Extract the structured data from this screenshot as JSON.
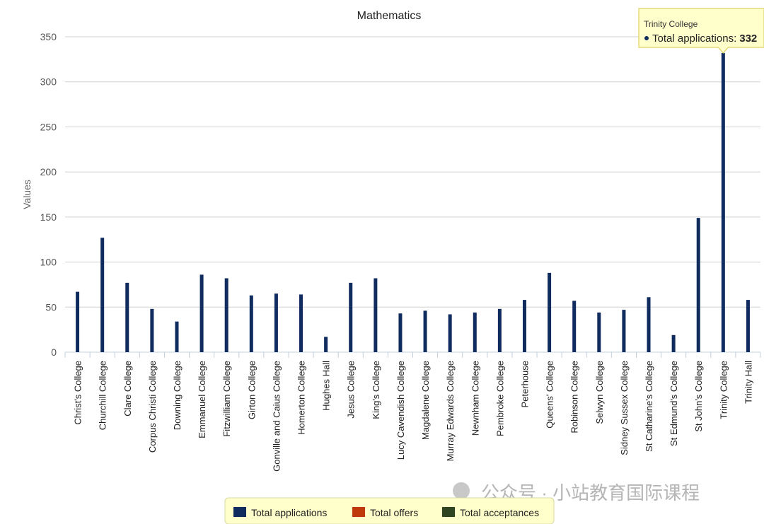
{
  "chart_data": {
    "type": "bar",
    "title": "Mathematics",
    "y_label": "Values",
    "categories": [
      "Christ's College",
      "Churchill College",
      "Clare College",
      "Corpus Christi College",
      "Downing College",
      "Emmanuel College",
      "Fitzwilliam College",
      "Girton College",
      "Gonville and Caius College",
      "Homerton College",
      "Hughes Hall",
      "Jesus College",
      "King's College",
      "Lucy Cavendish College",
      "Magdalene College",
      "Murray Edwards College",
      "Newnham College",
      "Pembroke College",
      "Peterhouse",
      "Queens' College",
      "Robinson College",
      "Selwyn College",
      "Sidney Sussex College",
      "St Catharine's College",
      "St Edmund's College",
      "St John's College",
      "Trinity College",
      "Trinity Hall"
    ],
    "series": [
      {
        "name": "Total applications",
        "color": "#102b5e",
        "values": [
          67,
          127,
          77,
          48,
          34,
          86,
          82,
          63,
          65,
          64,
          17,
          77,
          82,
          43,
          46,
          42,
          44,
          48,
          58,
          88,
          57,
          44,
          47,
          61,
          19,
          149,
          332,
          58
        ]
      },
      {
        "name": "Total offers",
        "color": "#c0390b",
        "values": [
          null,
          null,
          null,
          null,
          null,
          null,
          null,
          null,
          null,
          null,
          null,
          null,
          null,
          null,
          null,
          null,
          null,
          null,
          null,
          null,
          null,
          null,
          null,
          null,
          null,
          null,
          null,
          null
        ]
      },
      {
        "name": "Total acceptances",
        "color": "#2f4420",
        "values": [
          null,
          null,
          null,
          null,
          null,
          null,
          null,
          null,
          null,
          null,
          null,
          null,
          null,
          null,
          null,
          null,
          null,
          null,
          null,
          null,
          null,
          null,
          null,
          null,
          null,
          null,
          null,
          null
        ]
      }
    ],
    "ylim": [
      0,
      350
    ],
    "yticks": [
      0,
      50,
      100,
      150,
      200,
      250,
      300,
      350
    ],
    "grid": true,
    "legend": "bottom",
    "tooltip": {
      "title": "Trinity College",
      "label": "Total applications:",
      "value": 332
    },
    "watermark": "公众号 · 小站教育国际课程"
  }
}
